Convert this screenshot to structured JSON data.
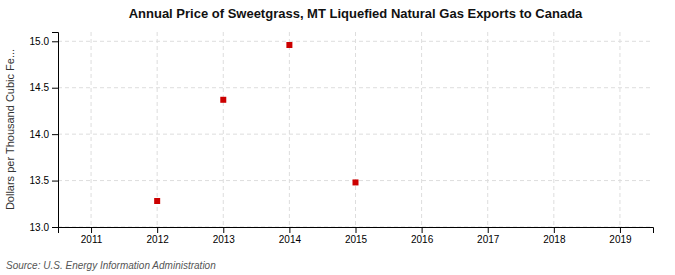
{
  "chart_data": {
    "type": "scatter",
    "title": "Annual Price of Sweetgrass, MT Liquefied Natural Gas Exports to Canada",
    "ylabel": "Dollars per Thousand Cubic Fe...",
    "annotations": [
      "Source: U.S. Energy Information Administration"
    ],
    "x": [
      2012,
      2013,
      2014,
      2015
    ],
    "values": [
      13.28,
      14.37,
      14.96,
      13.48
    ],
    "color": "#cc0000",
    "marker": "square",
    "xlim": [
      2010.5,
      2019.5
    ],
    "ylim": [
      13.0,
      15.1
    ],
    "xticks": [
      2011,
      2012,
      2013,
      2014,
      2015,
      2016,
      2017,
      2018,
      2019
    ],
    "yticks": [
      {
        "value": 13.0,
        "label": "13.0"
      },
      13.5,
      {
        "value": 14.0,
        "label": "14.0"
      },
      14.5,
      {
        "value": 15.0,
        "label": "15.0"
      }
    ],
    "grid": true
  }
}
